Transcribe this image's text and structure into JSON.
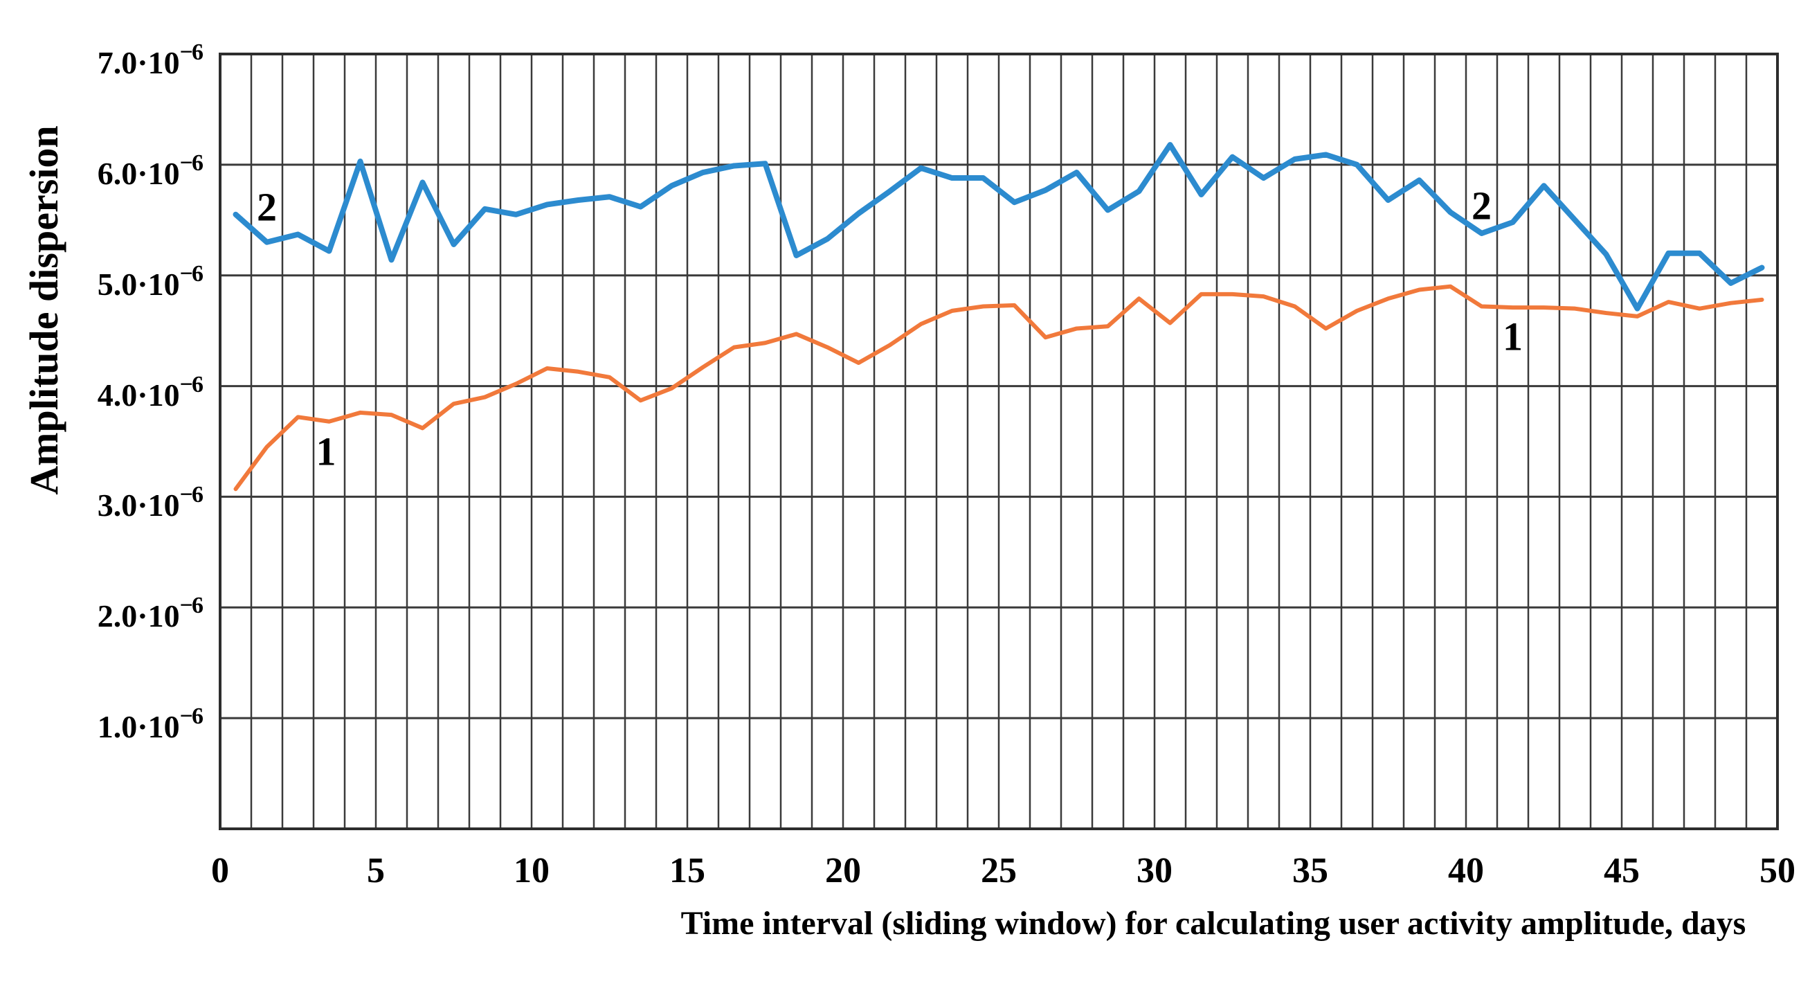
{
  "chart_data": {
    "type": "line",
    "title": "",
    "xlabel": "Time interval (sliding window) for calculating user activity amplitude, days",
    "ylabel": "Amplitude dispersion",
    "xlim": [
      0,
      50
    ],
    "ylim": [
      0,
      7
    ],
    "y_unit_note": "all y values are ×10⁻⁶",
    "grid": {
      "x_step_days": 1,
      "y_step": 1,
      "color": "#3a3a3a",
      "on": true
    },
    "legend_position": "inline-labels-on-curves",
    "x_ticks": [
      0,
      5,
      10,
      15,
      20,
      25,
      30,
      35,
      40,
      45,
      50
    ],
    "y_ticks": [
      {
        "value": 7,
        "mantissa": "7.0",
        "separator": "·",
        "base": "10",
        "exponent": "−6"
      },
      {
        "value": 6,
        "mantissa": "6.0",
        "separator": "·",
        "base": "10",
        "exponent": "−6"
      },
      {
        "value": 5,
        "mantissa": "5.0",
        "separator": "·",
        "base": "10",
        "exponent": "−6"
      },
      {
        "value": 4,
        "mantissa": "4.0",
        "separator": "·",
        "base": "10",
        "exponent": "−6"
      },
      {
        "value": 3,
        "mantissa": "3.0",
        "separator": "·",
        "base": "10",
        "exponent": "−6"
      },
      {
        "value": 2,
        "mantissa": "2.0",
        "separator": "·",
        "base": "10",
        "exponent": "−6"
      },
      {
        "value": 1,
        "mantissa": "1.0",
        "separator": "·",
        "base": "10",
        "exponent": "−6"
      }
    ],
    "x": [
      0.5,
      1.5,
      2.5,
      3.5,
      4.5,
      5.5,
      6.5,
      7.5,
      8.5,
      9.5,
      10.5,
      11.5,
      12.5,
      13.5,
      14.5,
      15.5,
      16.5,
      17.5,
      18.5,
      19.5,
      20.5,
      21.5,
      22.5,
      23.5,
      24.5,
      25.5,
      26.5,
      27.5,
      28.5,
      29.5,
      30.5,
      31.5,
      32.5,
      33.5,
      34.5,
      35.5,
      36.5,
      37.5,
      38.5,
      39.5,
      40.5,
      41.5,
      42.5,
      43.5,
      44.5,
      45.5,
      46.5,
      47.5,
      48.5,
      49.5
    ],
    "series": [
      {
        "name": "1",
        "color": "#F1793B",
        "stroke_width": 6,
        "values": [
          3.07,
          3.45,
          3.72,
          3.68,
          3.76,
          3.74,
          3.62,
          3.84,
          3.9,
          4.02,
          4.16,
          4.13,
          4.08,
          3.87,
          3.98,
          4.17,
          4.35,
          4.39,
          4.47,
          4.35,
          4.21,
          4.37,
          4.56,
          4.68,
          4.72,
          4.73,
          4.44,
          4.52,
          4.54,
          4.79,
          4.57,
          4.83,
          4.83,
          4.81,
          4.72,
          4.52,
          4.68,
          4.79,
          4.87,
          4.9,
          4.72,
          4.71,
          4.71,
          4.7,
          4.66,
          4.63,
          4.76,
          4.7,
          4.75,
          4.78
        ]
      },
      {
        "name": "2",
        "color": "#2C8BCF",
        "stroke_width": 8,
        "values": [
          5.55,
          5.3,
          5.37,
          5.22,
          6.03,
          5.14,
          5.84,
          5.28,
          5.6,
          5.55,
          5.64,
          5.68,
          5.71,
          5.62,
          5.81,
          5.93,
          5.99,
          6.01,
          5.18,
          5.33,
          5.56,
          5.76,
          5.97,
          5.88,
          5.88,
          5.66,
          5.77,
          5.93,
          5.59,
          5.76,
          6.18,
          5.73,
          6.07,
          5.88,
          6.05,
          6.09,
          6.0,
          5.68,
          5.86,
          5.57,
          5.38,
          5.48,
          5.81,
          5.5,
          5.19,
          4.7,
          5.2,
          5.2,
          4.93,
          5.07
        ]
      }
    ],
    "annotations": [
      {
        "text": "2",
        "x": 1.5,
        "y": 5.62
      },
      {
        "text": "1",
        "x": 3.4,
        "y": 3.41
      },
      {
        "text": "2",
        "x": 40.5,
        "y": 5.63
      },
      {
        "text": "1",
        "x": 41.5,
        "y": 4.45
      }
    ]
  }
}
